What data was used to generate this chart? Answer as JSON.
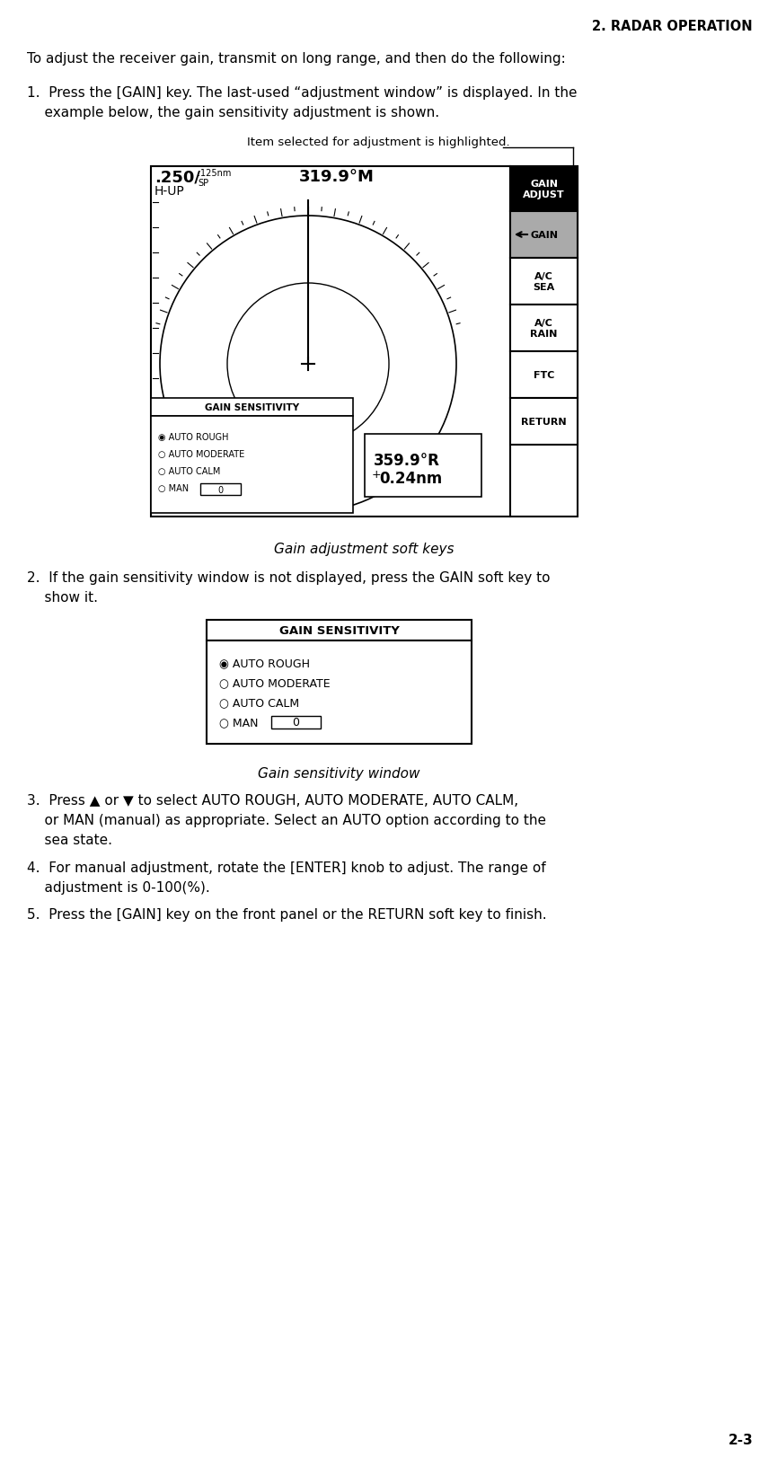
{
  "page_header": "2. RADAR OPERATION",
  "page_number": "2-3",
  "intro_text": "To adjust the receiver gain, transmit on long range, and then do the following:",
  "step1_line1": "1.  Press the [GAIN] key. The last-used “adjustment window” is displayed. In the",
  "step1_line2": "    example below, the gain sensitivity adjustment is shown.",
  "annotation_text": "Item selected for adjustment is highlighted.",
  "radar_250": ".250/",
  "radar_125nm": ".125nm",
  "radar_sp": "SP",
  "radar_hup": "H-UP",
  "radar_bearing": "319.9°M",
  "cursor_bearing": "359.9°R",
  "cursor_range": "0.24nm",
  "softkeys": [
    "GAIN\nADJUST",
    "GAIN",
    "A/C\nSEA",
    "A/C\nRAIN",
    "FTC",
    "RETURN"
  ],
  "softkey_bg": [
    "#000000",
    "#aaaaaa",
    "#ffffff",
    "#ffffff",
    "#ffffff",
    "#ffffff"
  ],
  "softkey_fg": [
    "#ffffff",
    "#000000",
    "#000000",
    "#000000",
    "#000000",
    "#000000"
  ],
  "gain_sensitivity_title": "GAIN SENSITIVITY",
  "gain_options": [
    "◉ AUTO ROUGH",
    "○ AUTO MODERATE",
    "○ AUTO CALM",
    "○ MAN"
  ],
  "fig_caption1": "Gain adjustment soft keys",
  "step2_line1": "2.  If the gain sensitivity window is not displayed, press the GAIN soft key to",
  "step2_line2": "    show it.",
  "fig_caption2": "Gain sensitivity window",
  "step3_line1": "3.  Press ▲ or ▼ to select AUTO ROUGH, AUTO MODERATE, AUTO CALM,",
  "step3_line2": "    or MAN (manual) as appropriate. Select an AUTO option according to the",
  "step3_line3": "    sea state.",
  "step4_line1": "4.  For manual adjustment, rotate the [ENTER] knob to adjust. The range of",
  "step4_line2": "    adjustment is 0-100(%).",
  "step5": "5.  Press the [GAIN] key on the front panel or the RETURN soft key to finish.",
  "bg_color": "#ffffff",
  "text_color": "#000000"
}
